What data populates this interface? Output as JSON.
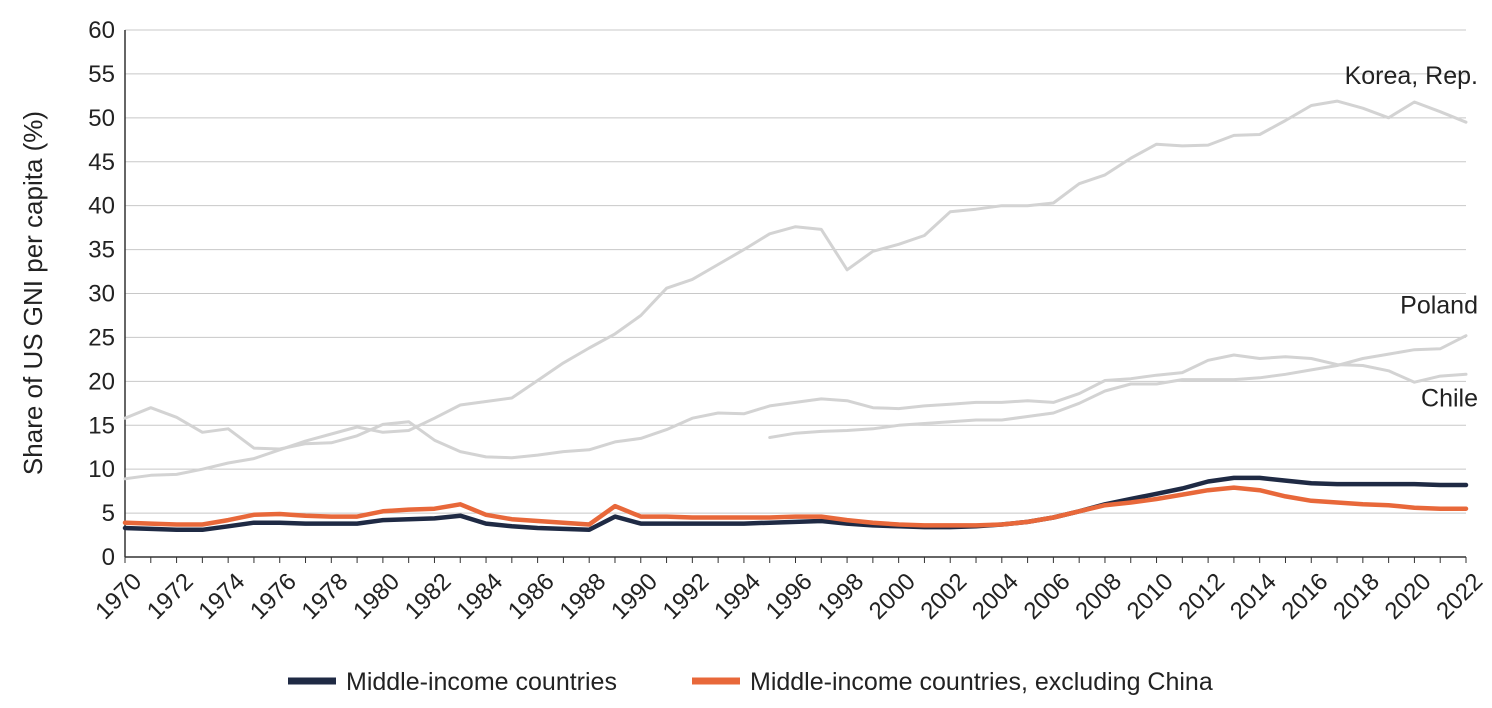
{
  "chart_data": {
    "type": "line",
    "ylabel": "Share of US GNI per capita (%)",
    "xlabel": "",
    "ylim": [
      0,
      60
    ],
    "xlim": [
      1970,
      2022
    ],
    "y_ticks": [
      0,
      5,
      10,
      15,
      20,
      25,
      30,
      35,
      40,
      45,
      50,
      55,
      60
    ],
    "x_ticks": [
      "1970",
      "1972",
      "1974",
      "1976",
      "1978",
      "1980",
      "1982",
      "1984",
      "1986",
      "1988",
      "1990",
      "1992",
      "1994",
      "1996",
      "1998",
      "2000",
      "2002",
      "2004",
      "2006",
      "2008",
      "2010",
      "2012",
      "2014",
      "2016",
      "2018",
      "2020",
      "2022"
    ],
    "grid": "horizontal",
    "legend_position": "bottom",
    "series": [
      {
        "name": "Korea, Rep.",
        "color": "#d3d3d3",
        "in_legend": false,
        "start": 1970,
        "values": [
          8.9,
          9.3,
          9.4,
          10.0,
          10.7,
          11.2,
          12.2,
          13.2,
          14.0,
          14.8,
          14.2,
          14.4,
          15.8,
          17.3,
          17.7,
          18.1,
          20.1,
          22.1,
          23.8,
          25.4,
          27.5,
          30.6,
          31.6,
          33.3,
          35.0,
          36.8,
          37.6,
          37.3,
          32.7,
          34.8,
          35.6,
          36.6,
          39.3,
          39.6,
          40.0,
          40.0,
          40.3,
          42.5,
          43.5,
          45.4,
          47.0,
          46.8,
          46.9,
          48.0,
          48.1,
          49.7,
          51.4,
          51.9,
          51.1,
          50.0,
          51.8,
          50.7,
          49.5
        ]
      },
      {
        "name": "Poland",
        "color": "#d3d3d3",
        "in_legend": false,
        "start": 1995,
        "values": [
          13.6,
          14.1,
          14.3,
          14.4,
          14.6,
          15.0,
          15.2,
          15.4,
          15.6,
          15.6,
          16.0,
          16.4,
          17.5,
          18.9,
          19.7,
          19.7,
          20.2,
          20.2,
          20.2,
          20.4,
          20.8,
          21.3,
          21.8,
          22.6,
          23.1,
          23.6,
          23.7,
          25.2
        ]
      },
      {
        "name": "Chile",
        "color": "#d3d3d3",
        "in_legend": false,
        "start": 1970,
        "values": [
          15.8,
          17.0,
          15.9,
          14.2,
          14.6,
          12.4,
          12.3,
          12.9,
          13.0,
          13.8,
          15.1,
          15.4,
          13.3,
          12.0,
          11.4,
          11.3,
          11.6,
          12.0,
          12.2,
          13.1,
          13.5,
          14.5,
          15.8,
          16.4,
          16.3,
          17.2,
          17.6,
          18.0,
          17.8,
          17.0,
          16.9,
          17.2,
          17.4,
          17.6,
          17.6,
          17.8,
          17.6,
          18.6,
          20.1,
          20.3,
          20.7,
          21.0,
          22.4,
          23.0,
          22.6,
          22.8,
          22.6,
          21.9,
          21.8,
          21.2,
          19.9,
          20.6,
          20.8
        ]
      },
      {
        "name": "Middle-income countries",
        "color": "#1f2a44",
        "in_legend": true,
        "start": 1970,
        "values": [
          3.3,
          3.2,
          3.1,
          3.1,
          3.5,
          3.9,
          3.9,
          3.8,
          3.8,
          3.8,
          4.2,
          4.3,
          4.4,
          4.7,
          3.8,
          3.5,
          3.3,
          3.2,
          3.1,
          4.6,
          3.8,
          3.8,
          3.8,
          3.8,
          3.8,
          3.9,
          4.0,
          4.1,
          3.8,
          3.6,
          3.5,
          3.4,
          3.4,
          3.5,
          3.7,
          4.0,
          4.5,
          5.2,
          6.0,
          6.6,
          7.2,
          7.8,
          8.6,
          9.0,
          9.0,
          8.7,
          8.4,
          8.3,
          8.3,
          8.3,
          8.3,
          8.2,
          8.2
        ]
      },
      {
        "name": "Middle-income countries, excluding China",
        "color": "#e8683a",
        "in_legend": true,
        "start": 1970,
        "values": [
          3.9,
          3.8,
          3.7,
          3.7,
          4.2,
          4.8,
          4.9,
          4.7,
          4.6,
          4.6,
          5.2,
          5.4,
          5.5,
          6.0,
          4.8,
          4.3,
          4.1,
          3.9,
          3.7,
          5.8,
          4.6,
          4.6,
          4.5,
          4.5,
          4.5,
          4.5,
          4.6,
          4.6,
          4.2,
          3.9,
          3.7,
          3.6,
          3.6,
          3.6,
          3.7,
          4.0,
          4.5,
          5.2,
          5.9,
          6.2,
          6.6,
          7.1,
          7.6,
          7.9,
          7.6,
          6.9,
          6.4,
          6.2,
          6.0,
          5.9,
          5.6,
          5.5,
          5.5
        ]
      }
    ],
    "annotations": [
      {
        "series": "Korea, Rep.",
        "text": "Korea, Rep."
      },
      {
        "series": "Poland",
        "text": "Poland"
      },
      {
        "series": "Chile",
        "text": "Chile"
      }
    ],
    "legend": [
      {
        "label": "Middle-income countries",
        "color": "#1f2a44"
      },
      {
        "label": "Middle-income countries, excluding China",
        "color": "#e8683a"
      }
    ]
  }
}
